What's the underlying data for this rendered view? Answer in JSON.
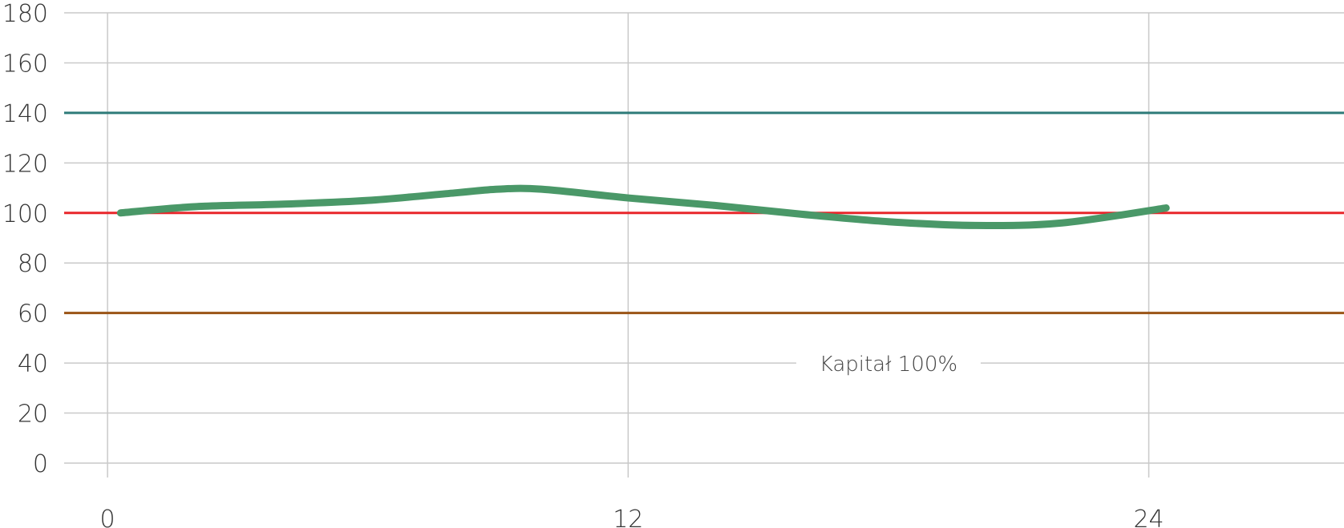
{
  "chart_data": {
    "type": "line",
    "title": "",
    "xlabel": "",
    "ylabel": "",
    "xlim": [
      -1,
      28.5
    ],
    "ylim": [
      0,
      180
    ],
    "x_ticks": [
      0,
      12,
      24
    ],
    "x_tick_labels": [
      "0",
      "12",
      "24"
    ],
    "y_ticks": [
      0,
      20,
      40,
      60,
      80,
      100,
      120,
      140,
      160,
      180
    ],
    "y_tick_labels": [
      "0",
      "20",
      "40",
      "60",
      "80",
      "100",
      "120",
      "140",
      "160",
      "180"
    ],
    "grid": true,
    "series": [
      {
        "color": "#4a9868",
        "x": [
          0.3,
          2,
          4,
          6,
          8,
          9,
          10,
          12,
          14,
          16,
          18,
          20,
          22,
          24.4
        ],
        "y": [
          100,
          102.5,
          103.5,
          105,
          108,
          109.5,
          109.5,
          106,
          103,
          99.5,
          96.5,
          95,
          96,
          102
        ]
      }
    ],
    "reference_lines": [
      {
        "y": 140,
        "color": "#2e7b79"
      },
      {
        "y": 100,
        "color": "#e8262b"
      },
      {
        "y": 60,
        "color": "#9a5416"
      }
    ],
    "annotations": [
      {
        "text": "Kapitał 100%",
        "x": 18,
        "y": 40
      }
    ]
  }
}
